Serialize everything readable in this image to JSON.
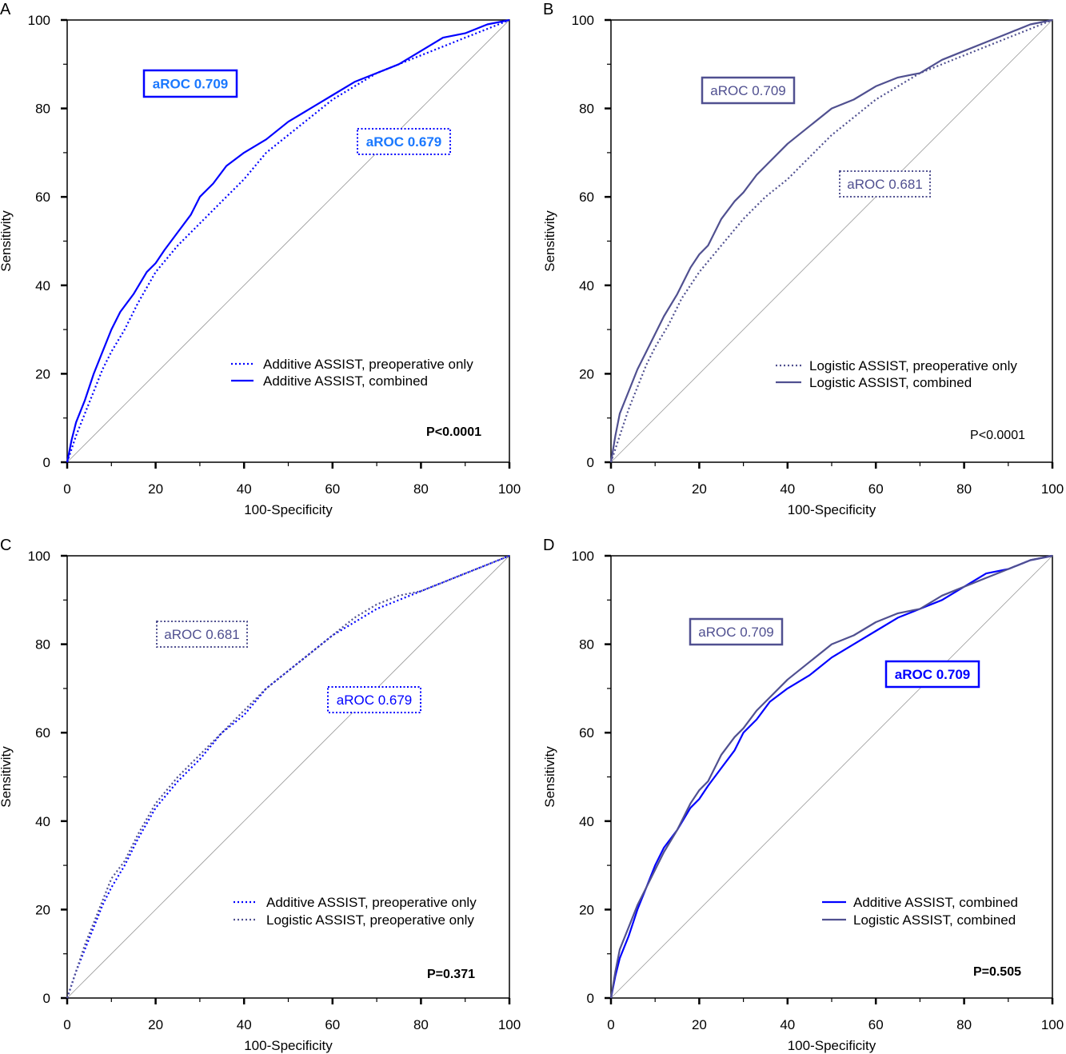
{
  "colors": {
    "additive": "#0000ff",
    "logistic": "#505090",
    "additive_label": "#1a78ff",
    "diagonal": "#999999"
  },
  "chart_data": [
    {
      "panel": "A",
      "type": "line",
      "xlabel": "100-Specificity",
      "ylabel": "Sensitivity",
      "xlim": [
        0,
        100
      ],
      "ylim": [
        0,
        100
      ],
      "xticks": [
        "0",
        "20",
        "40",
        "60",
        "80",
        "100"
      ],
      "yticks": [
        "0",
        "20",
        "40",
        "60",
        "80",
        "100"
      ],
      "series": [
        {
          "name": "Additive ASSIST, preoperative only",
          "style": "dotted",
          "color": "#0000ff",
          "x": [
            0,
            2,
            4,
            6,
            8,
            10,
            13,
            16,
            20,
            25,
            30,
            35,
            40,
            45,
            50,
            55,
            60,
            65,
            70,
            75,
            80,
            85,
            90,
            95,
            100
          ],
          "y": [
            0,
            6,
            11,
            16,
            21,
            25,
            30,
            36,
            43,
            49,
            54,
            59,
            64,
            70,
            74,
            78,
            82,
            85,
            88,
            90,
            92,
            94,
            96,
            98,
            100
          ]
        },
        {
          "name": "Additive ASSIST, combined",
          "style": "solid",
          "color": "#0000ff",
          "x": [
            0,
            1,
            2,
            4,
            6,
            8,
            10,
            12,
            15,
            18,
            20,
            22,
            25,
            28,
            30,
            33,
            36,
            40,
            45,
            50,
            55,
            60,
            65,
            70,
            75,
            80,
            85,
            90,
            95,
            100
          ],
          "y": [
            0,
            5,
            9,
            14,
            20,
            25,
            30,
            34,
            38,
            43,
            45,
            48,
            52,
            56,
            60,
            63,
            67,
            70,
            73,
            77,
            80,
            83,
            86,
            88,
            90,
            93,
            96,
            97,
            99,
            100
          ]
        }
      ],
      "annotations": [
        {
          "text": "aROC 0.709",
          "border": "solid",
          "color": "#0000ff",
          "text_color": "#1a78ff",
          "bold": true
        },
        {
          "text": "aROC 0.679",
          "border": "dotted",
          "color": "#0000ff",
          "text_color": "#1a78ff",
          "bold": true
        }
      ],
      "p_value": {
        "text": "P<0.0001",
        "bold": true
      }
    },
    {
      "panel": "B",
      "type": "line",
      "xlabel": "100-Specificity",
      "ylabel": "Sensitivity",
      "xlim": [
        0,
        100
      ],
      "ylim": [
        0,
        100
      ],
      "xticks": [
        "0",
        "20",
        "40",
        "60",
        "80",
        "100"
      ],
      "yticks": [
        "0",
        "20",
        "40",
        "60",
        "80",
        "100"
      ],
      "series": [
        {
          "name": "Logistic ASSIST, preoperative only",
          "style": "dotted",
          "color": "#505090",
          "x": [
            0,
            2,
            4,
            6,
            8,
            10,
            13,
            16,
            20,
            25,
            30,
            35,
            40,
            45,
            50,
            55,
            60,
            65,
            70,
            75,
            80,
            85,
            90,
            95,
            100
          ],
          "y": [
            0,
            6,
            12,
            17,
            22,
            26,
            31,
            37,
            43,
            49,
            55,
            60,
            64,
            69,
            74,
            78,
            82,
            85,
            88,
            90,
            92,
            94,
            96,
            98,
            100
          ]
        },
        {
          "name": "Logistic ASSIST, combined",
          "style": "solid",
          "color": "#505090",
          "x": [
            0,
            1,
            2,
            4,
            6,
            8,
            10,
            12,
            15,
            18,
            20,
            22,
            25,
            28,
            30,
            33,
            36,
            40,
            45,
            50,
            55,
            60,
            65,
            70,
            75,
            80,
            85,
            90,
            95,
            100
          ],
          "y": [
            0,
            6,
            11,
            16,
            21,
            25,
            29,
            33,
            38,
            44,
            47,
            49,
            55,
            59,
            61,
            65,
            68,
            72,
            76,
            80,
            82,
            85,
            87,
            88,
            91,
            93,
            95,
            97,
            99,
            100
          ]
        }
      ],
      "annotations": [
        {
          "text": "aROC 0.709",
          "border": "solid",
          "color": "#505090",
          "text_color": "#505090",
          "bold": false
        },
        {
          "text": "aROC 0.681",
          "border": "dotted",
          "color": "#505090",
          "text_color": "#505090",
          "bold": false
        }
      ],
      "p_value": {
        "text": "P<0.0001",
        "bold": false
      }
    },
    {
      "panel": "C",
      "type": "line",
      "xlabel": "100-Specificity",
      "ylabel": "Sensitivity",
      "xlim": [
        0,
        100
      ],
      "ylim": [
        0,
        100
      ],
      "xticks": [
        "0",
        "20",
        "40",
        "60",
        "80",
        "100"
      ],
      "yticks": [
        "0",
        "20",
        "40",
        "60",
        "80",
        "100"
      ],
      "series": [
        {
          "name": "Additive ASSIST, preoperative only",
          "style": "dotted",
          "color": "#0000ff",
          "x": [
            0,
            2,
            4,
            6,
            8,
            10,
            13,
            16,
            20,
            25,
            30,
            35,
            40,
            45,
            50,
            55,
            60,
            65,
            70,
            75,
            80,
            85,
            90,
            95,
            100
          ],
          "y": [
            0,
            6,
            11,
            16,
            21,
            25,
            30,
            36,
            43,
            49,
            54,
            60,
            64,
            70,
            74,
            78,
            82,
            85,
            88,
            90,
            92,
            94,
            96,
            98,
            100
          ]
        },
        {
          "name": "Logistic ASSIST, preoperative only",
          "style": "dotted",
          "color": "#505090",
          "x": [
            0,
            2,
            4,
            6,
            8,
            10,
            13,
            16,
            20,
            25,
            30,
            35,
            40,
            45,
            50,
            55,
            60,
            65,
            70,
            75,
            80,
            85,
            90,
            95,
            100
          ],
          "y": [
            0,
            6,
            12,
            17,
            22,
            27,
            31,
            37,
            44,
            50,
            55,
            60,
            65,
            70,
            74,
            78,
            82,
            86,
            89,
            91,
            92,
            94,
            96,
            98,
            100
          ]
        }
      ],
      "annotations": [
        {
          "text": "aROC 0.681",
          "border": "dotted",
          "color": "#505090",
          "text_color": "#505090",
          "bold": false
        },
        {
          "text": "aROC 0.679",
          "border": "dotted",
          "color": "#0000ff",
          "text_color": "#0000ff",
          "bold": false
        }
      ],
      "p_value": {
        "text": "P=0.371",
        "bold": true
      }
    },
    {
      "panel": "D",
      "type": "line",
      "xlabel": "100-Specificity",
      "ylabel": "Sensitivity",
      "xlim": [
        0,
        100
      ],
      "ylim": [
        0,
        100
      ],
      "xticks": [
        "0",
        "20",
        "40",
        "60",
        "80",
        "100"
      ],
      "yticks": [
        "0",
        "20",
        "40",
        "60",
        "80",
        "100"
      ],
      "series": [
        {
          "name": "Additive ASSIST, combined",
          "style": "solid",
          "color": "#0000ff",
          "x": [
            0,
            1,
            2,
            4,
            6,
            8,
            10,
            12,
            15,
            18,
            20,
            22,
            25,
            28,
            30,
            33,
            36,
            40,
            45,
            50,
            55,
            60,
            65,
            70,
            75,
            80,
            85,
            90,
            95,
            100
          ],
          "y": [
            0,
            5,
            9,
            14,
            20,
            25,
            30,
            34,
            38,
            43,
            45,
            48,
            52,
            56,
            60,
            63,
            67,
            70,
            73,
            77,
            80,
            83,
            86,
            88,
            90,
            93,
            96,
            97,
            99,
            100
          ]
        },
        {
          "name": "Logistic ASSIST, combined",
          "style": "solid",
          "color": "#505090",
          "x": [
            0,
            1,
            2,
            4,
            6,
            8,
            10,
            12,
            15,
            18,
            20,
            22,
            25,
            28,
            30,
            33,
            36,
            40,
            45,
            50,
            55,
            60,
            65,
            70,
            75,
            80,
            85,
            90,
            95,
            100
          ],
          "y": [
            0,
            6,
            11,
            16,
            21,
            25,
            29,
            33,
            38,
            44,
            47,
            49,
            55,
            59,
            61,
            65,
            68,
            72,
            76,
            80,
            82,
            85,
            87,
            88,
            91,
            93,
            95,
            97,
            99,
            100
          ]
        }
      ],
      "annotations": [
        {
          "text": "aROC 0.709",
          "border": "solid",
          "color": "#505090",
          "text_color": "#505090",
          "bold": false
        },
        {
          "text": "aROC 0.709",
          "border": "solid",
          "color": "#0000ff",
          "text_color": "#0000ff",
          "bold": true
        }
      ],
      "p_value": {
        "text": "P=0.505",
        "bold": true
      }
    }
  ]
}
